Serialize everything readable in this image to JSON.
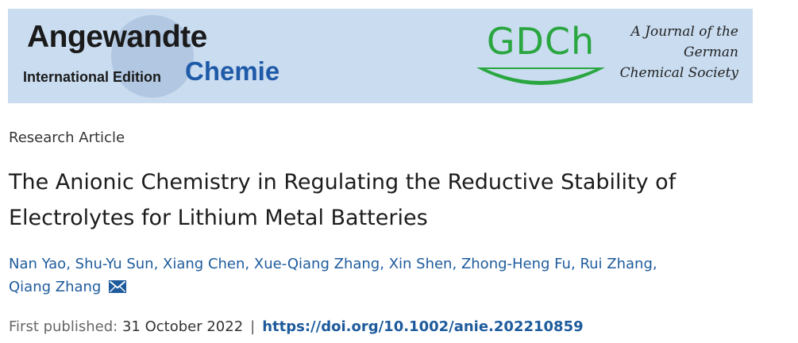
{
  "banner": {
    "journal_name_line1": "Angewandte",
    "journal_edition": "International Edition",
    "journal_name_line2": "Chemie",
    "society_logo_text": "GDCh",
    "society_desc": [
      "A Journal of the",
      "German",
      "Chemical Society"
    ],
    "colors": {
      "background": "#c9dcf0",
      "gdch_green": "#2aa640",
      "chemie_blue": "#1f5aa8"
    }
  },
  "article": {
    "type": "Research Article",
    "title": "The Anionic Chemistry in Regulating the Reductive Stability of Electrolytes for Lithium Metal Batteries",
    "authors": [
      "Nan Yao",
      "Shu-Yu Sun",
      "Xiang Chen",
      "Xue-Qiang Zhang",
      "Xin Shen",
      "Zhong-Heng Fu",
      "Rui Zhang",
      "Qiang Zhang"
    ],
    "author_separator": ",",
    "corresponding_icon": "envelope-icon",
    "published_label": "First published:",
    "published_date": "31 October 2022",
    "separator": "|",
    "doi": "https://doi.org/10.1002/anie.202210859",
    "link_color": "#1e5b9c"
  }
}
